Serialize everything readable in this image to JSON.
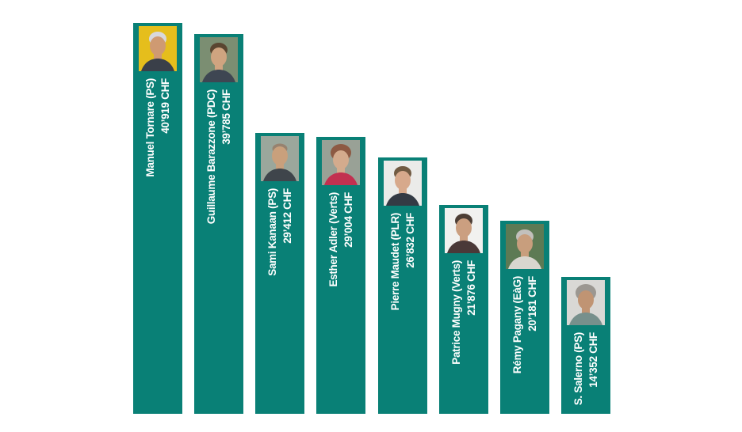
{
  "chart_data": {
    "type": "bar",
    "orientation": "vertical",
    "title": "",
    "unit": "CHF",
    "categories": [
      "Manuel Tornare (PS)",
      "Guillaume Barazzone (PDC)",
      "Sami Kanaan (PS)",
      "Esther Adler (Verts)",
      "Pierre Maudet (PLR)",
      "Patrice Mugny (Verts)",
      "Rémy Pagany (EàG)",
      "S. Salerno (PS)"
    ],
    "values": [
      40919,
      39785,
      29412,
      29004,
      26832,
      21876,
      20181,
      14352
    ],
    "value_labels": [
      "40’919 CHF",
      "39’785 CHF",
      "29’412 CHF",
      "29’004 CHF",
      "26’832 CHF",
      "21’876 CHF",
      "20’181 CHF",
      "14’352 CHF"
    ],
    "ylim": [
      0,
      40919
    ],
    "grid": false,
    "legend": false,
    "axes_visible": false,
    "bar_color": "#098076",
    "label_color": "#ffffff",
    "bars_have_portraits": true,
    "portraits": [
      {
        "person": "Manuel Tornare",
        "bg": "#e5be1c",
        "hair": "#d8d8dc",
        "skin": "#cf9a72",
        "shirt": "#3a3f49",
        "hair_style": "short"
      },
      {
        "person": "Guillaume Barazzone",
        "bg": "#7b8e72",
        "hair": "#5a4530",
        "skin": "#cfa480",
        "shirt": "#3e4652",
        "hair_style": "short"
      },
      {
        "person": "Sami Kanaan",
        "bg": "#9ba79c",
        "hair": "#97826f",
        "skin": "#c9a07c",
        "shirt": "#3f454b",
        "hair_style": "balding"
      },
      {
        "person": "Esther Adler",
        "bg": "#99a196",
        "hair": "#8d5a43",
        "skin": "#d4ab8d",
        "shirt": "#c23050",
        "hair_style": "curly"
      },
      {
        "person": "Pierre Maudet",
        "bg": "#ebebe9",
        "hair": "#705a42",
        "skin": "#d7a98c",
        "shirt": "#333a44",
        "hair_style": "short"
      },
      {
        "person": "Patrice Mugny",
        "bg": "#f1f1ef",
        "hair": "#4d3e35",
        "skin": "#cb9f80",
        "shirt": "#4a3938",
        "hair_style": "short"
      },
      {
        "person": "Rémy Pagany",
        "bg": "#5d7a54",
        "hair": "#c2c0bc",
        "skin": "#c89e7d",
        "shirt": "#d9d6cf",
        "hair_style": "short"
      },
      {
        "person": "S. Salerno",
        "bg": "#d9d8d5",
        "hair": "#9b9791",
        "skin": "#c09473",
        "shirt": "#77908c",
        "hair_style": "curly"
      }
    ]
  }
}
